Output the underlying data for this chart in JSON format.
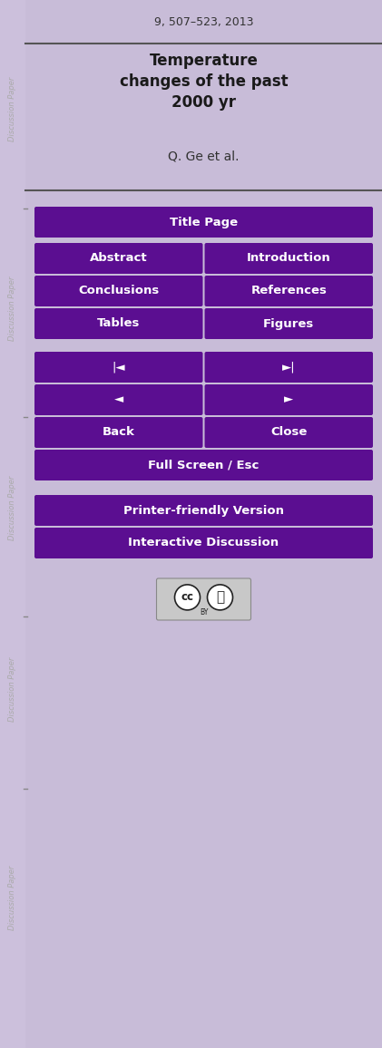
{
  "bg_color": "#c8bcd8",
  "sidebar_color": "#ccc0dc",
  "header_text": "9, 507–523, 2013",
  "header_color": "#333333",
  "title_text": "Temperature\nchanges of the past\n2000 yr",
  "title_color": "#1a1a1a",
  "author_text": "Q. Ge et al.",
  "author_color": "#333333",
  "divider_color": "#555555",
  "button_bg": "#5b0e91",
  "button_fg": "#ffffff",
  "fig_width": 4.21,
  "fig_height": 11.56,
  "dpi": 100
}
